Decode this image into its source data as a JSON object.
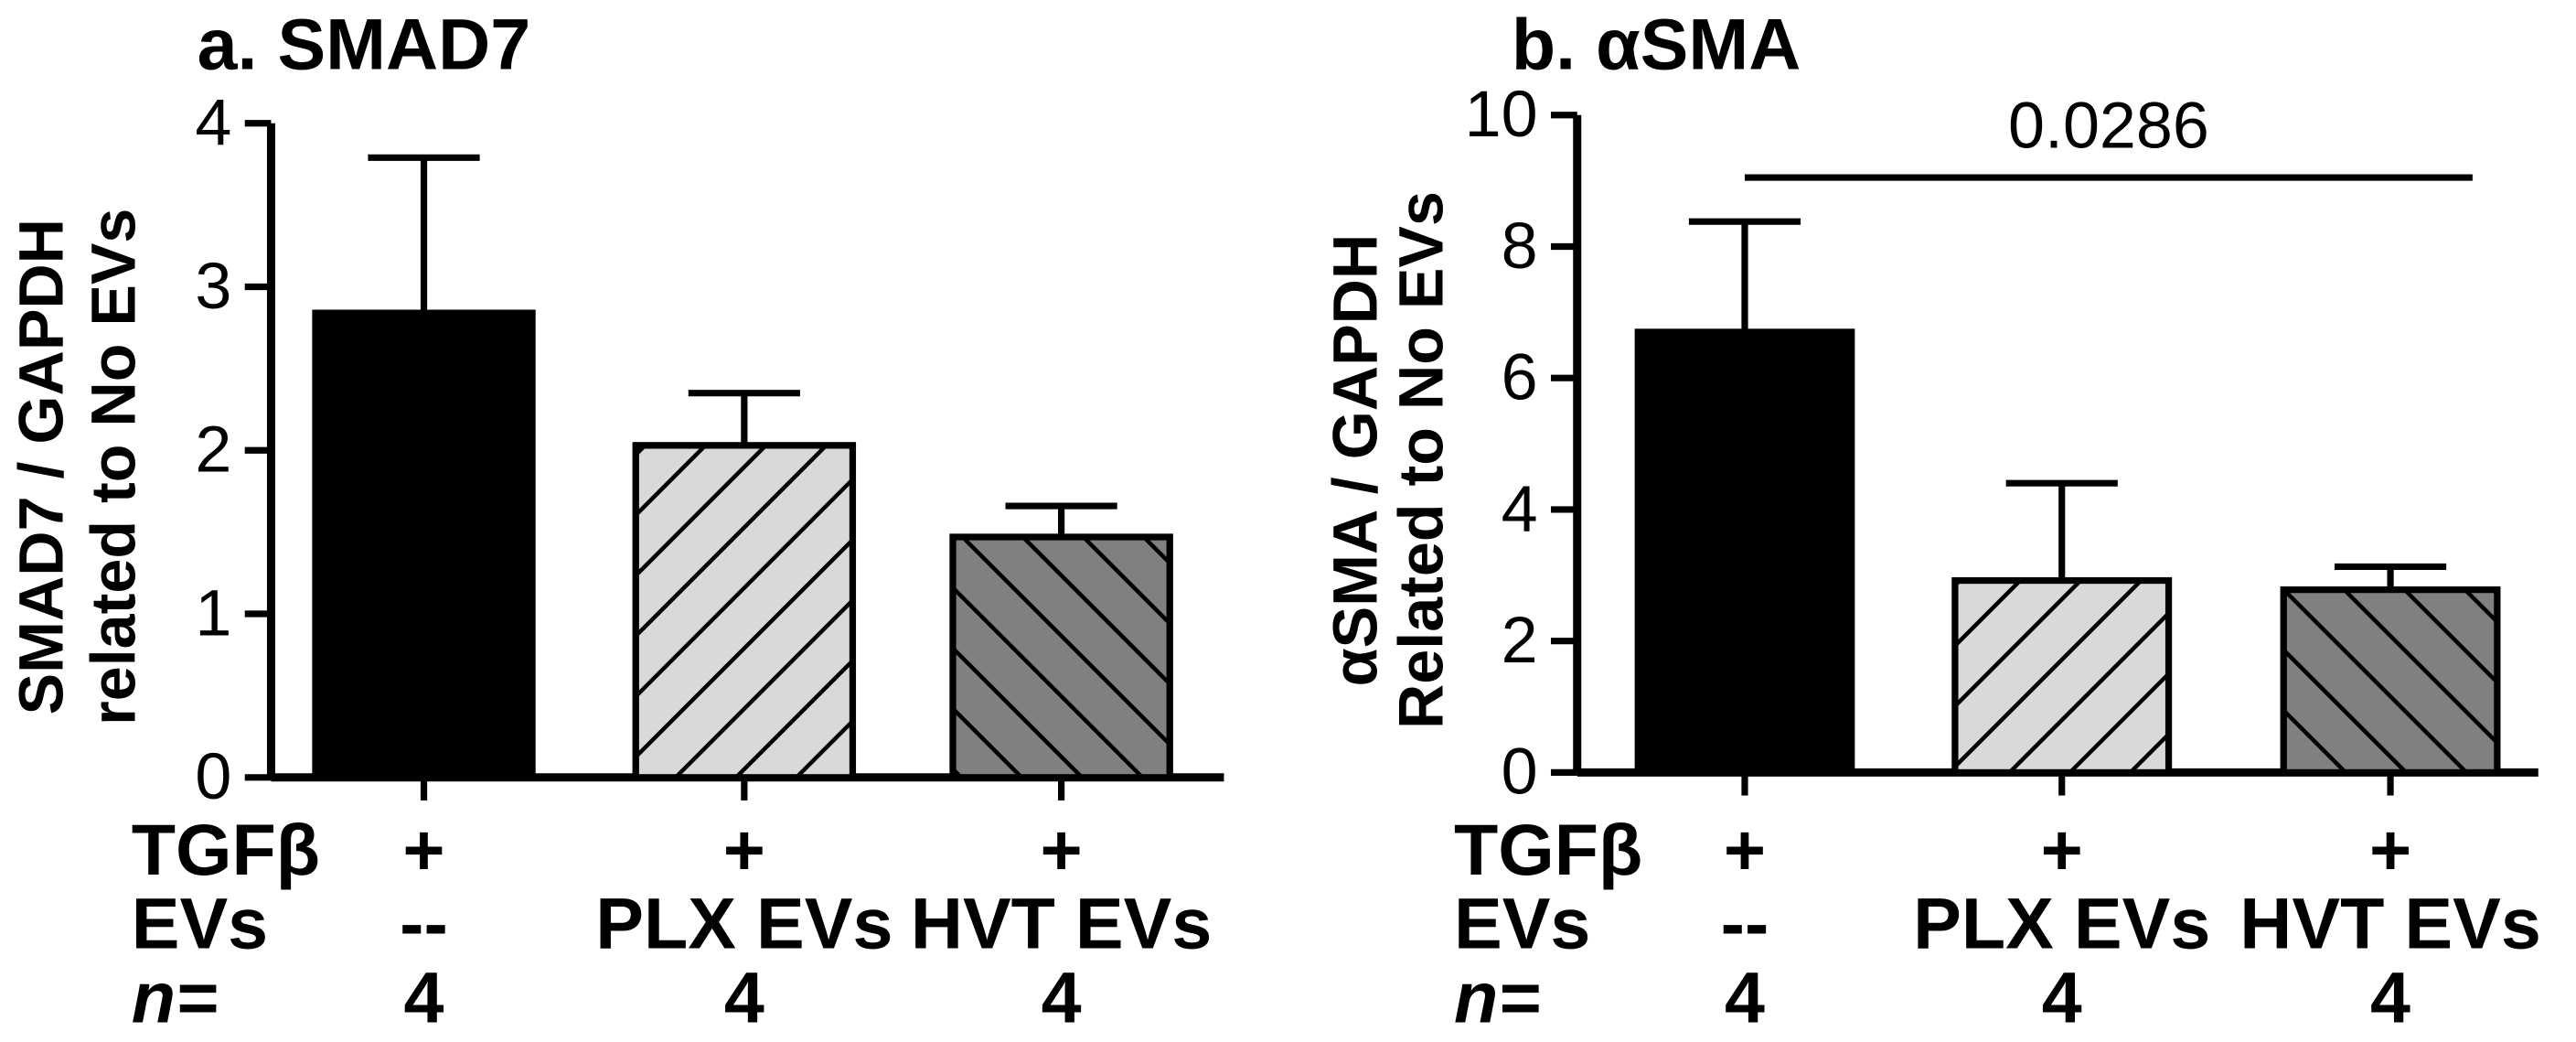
{
  "chart_data": [
    {
      "type": "bar",
      "title": "a. SMAD7",
      "ylabel_lines": [
        "SMAD7 / GAPDH",
        "related to No EVs"
      ],
      "ylim": [
        0,
        4
      ],
      "yticks": [
        0,
        1,
        2,
        3,
        4
      ],
      "categories": [
        "--",
        "PLX EVs",
        "HVT EVs"
      ],
      "values": [
        2.84,
        2.03,
        1.47
      ],
      "errors": [
        0.95,
        0.32,
        0.19
      ],
      "fills": [
        "#000000",
        "#d9d9d9",
        "#808080"
      ],
      "significance": null,
      "rows": [
        {
          "label": "TGFβ",
          "cells": [
            "+",
            "+",
            "+"
          ]
        },
        {
          "label": "EVs",
          "cells": [
            "--",
            "PLX EVs",
            "HVT EVs"
          ]
        },
        {
          "label": "n=",
          "cells": [
            "4",
            "4",
            "4"
          ]
        }
      ]
    },
    {
      "type": "bar",
      "title": "b. αSMA",
      "ylabel_lines": [
        "αSMA / GAPDH",
        "Related to No EVs"
      ],
      "ylim": [
        0,
        10
      ],
      "yticks": [
        0,
        2,
        4,
        6,
        8,
        10
      ],
      "categories": [
        "--",
        "PLX EVs",
        "HVT EVs"
      ],
      "values": [
        6.7,
        2.92,
        2.78
      ],
      "errors": [
        1.68,
        1.48,
        0.35
      ],
      "fills": [
        "#000000",
        "#d9d9d9",
        "#808080"
      ],
      "significance": {
        "from": 0,
        "to": 2,
        "y": 9.05,
        "label": "0.0286"
      },
      "rows": [
        {
          "label": "TGFβ",
          "cells": [
            "+",
            "+",
            "+"
          ]
        },
        {
          "label": "EVs",
          "cells": [
            "--",
            "PLX EVs",
            "HVT EVs"
          ]
        },
        {
          "label": "n=",
          "cells": [
            "4",
            "4",
            "4"
          ]
        }
      ]
    }
  ]
}
